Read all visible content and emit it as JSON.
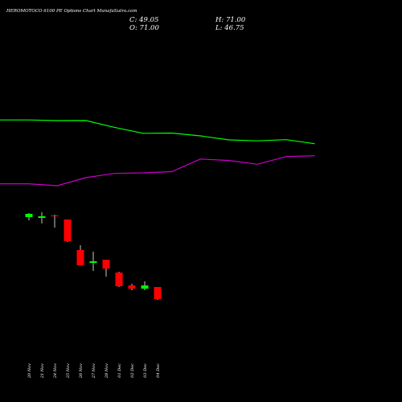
{
  "header": {
    "title": "HEROMOTOCO 6100 PE Options Chart MunafaSutra.com",
    "close_label": "C: 49.05",
    "open_label": "O: 71.00",
    "high_label": "H: 71.00",
    "low_label": "L: 46.75"
  },
  "colors": {
    "background": "#000000",
    "up_candle": "#00ff00",
    "down_candle": "#ff0000",
    "wick": "#c8c8c8",
    "green_line": "#00ff00",
    "magenta_line": "#cc00cc",
    "text": "#ffffff"
  },
  "chart_data": {
    "type": "candlestick",
    "title": "HEROMOTOCO 6100 PE Options Chart MunafaSutra.com",
    "categories": [
      "20 Nov",
      "21 Nov",
      "24 Nov",
      "25 Nov",
      "26 Nov",
      "27 Nov",
      "28 Nov",
      "01 Dec",
      "02 Dec",
      "03 Dec",
      "04 Dec"
    ],
    "ohlc": [
      {
        "open": 180,
        "high": 185,
        "low": 176,
        "close": 184
      },
      {
        "open": 179,
        "high": 186,
        "low": 172,
        "close": 181
      },
      {
        "open": 182,
        "high": 183,
        "low": 167,
        "close": 181
      },
      {
        "open": 177,
        "high": 177,
        "low": 149,
        "close": 150
      },
      {
        "open": 139,
        "high": 145,
        "low": 120,
        "close": 120
      },
      {
        "open": 123,
        "high": 137,
        "low": 113,
        "close": 125
      },
      {
        "open": 127,
        "high": 127,
        "low": 106,
        "close": 116
      },
      {
        "open": 111,
        "high": 112,
        "low": 93,
        "close": 94
      },
      {
        "open": 95,
        "high": 97,
        "low": 89,
        "close": 91
      },
      {
        "open": 91,
        "high": 100,
        "low": 89,
        "close": 95
      },
      {
        "open": 93,
        "high": 93,
        "low": 77,
        "close": 78
      }
    ],
    "lines": [
      {
        "color": "#00ff00",
        "x": [
          0,
          1,
          2,
          3,
          4,
          5,
          6,
          7,
          8,
          9,
          10,
          11
        ],
        "values": [
          4.3,
          4.3,
          3.5,
          3.6,
          -4.9,
          -12.3,
          -12.0,
          -15.5,
          -20.5,
          -21.7,
          -20.2,
          -25.3
        ]
      },
      {
        "color": "#cc00cc",
        "x": [
          0,
          1,
          2,
          3,
          4,
          5,
          6,
          7,
          8,
          9,
          10,
          11
        ],
        "values": [
          -75.1,
          -75.1,
          -77.5,
          -67.4,
          -62.2,
          -61.5,
          -60.0,
          -44.3,
          -46.1,
          -50.8,
          -41.2,
          -40.2
        ]
      }
    ],
    "grid": false,
    "legend": "none"
  }
}
